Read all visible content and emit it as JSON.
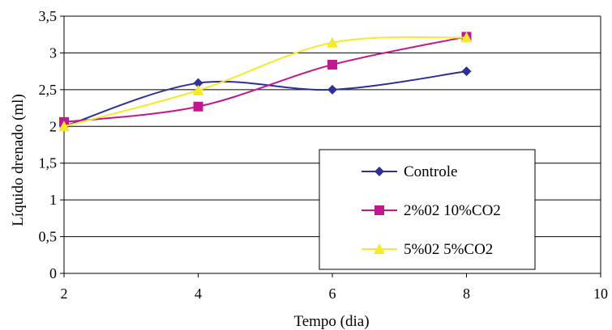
{
  "chart_data": {
    "type": "line",
    "title": "",
    "xlabel": "Tempo (dia)",
    "ylabel": "Líquido drenado (ml)",
    "xlim": [
      2,
      10
    ],
    "ylim": [
      0,
      3.5
    ],
    "x_ticks": [
      2,
      4,
      6,
      8,
      10
    ],
    "y_ticks": [
      0,
      0.5,
      1,
      1.5,
      2,
      2.5,
      3,
      3.5
    ],
    "x_tick_labels": [
      "2",
      "4",
      "6",
      "8",
      "10"
    ],
    "y_tick_labels": [
      "0",
      "0,5",
      "1",
      "1,5",
      "2",
      "2,5",
      "3",
      "3,5"
    ],
    "grid": "horizontal",
    "legend_position": "bottom-right",
    "smooth": true,
    "series": [
      {
        "name": "Controle",
        "color": "#2e3192",
        "marker": "diamond",
        "x": [
          2,
          4,
          6,
          8
        ],
        "y": [
          2.0,
          2.59,
          2.5,
          2.75
        ]
      },
      {
        "name": "2%02 10%CO2",
        "color": "#c2188f",
        "marker": "square",
        "x": [
          2,
          4,
          6,
          8
        ],
        "y": [
          2.06,
          2.27,
          2.84,
          3.22
        ]
      },
      {
        "name": "5%02 5%CO2",
        "color": "#f5e92a",
        "marker": "triangle",
        "x": [
          2,
          4,
          6,
          8
        ],
        "y": [
          2.0,
          2.49,
          3.14,
          3.21
        ]
      }
    ]
  }
}
